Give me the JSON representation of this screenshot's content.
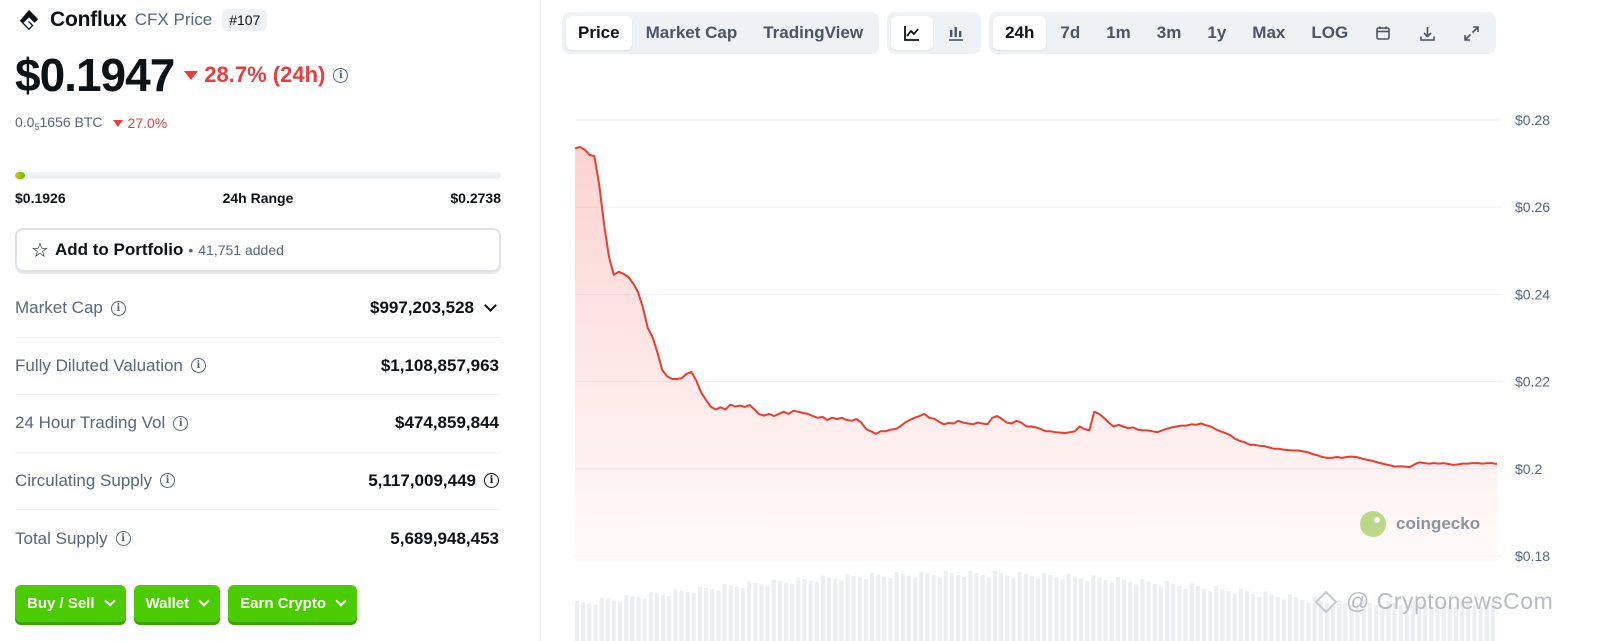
{
  "coin": {
    "name": "Conflux",
    "ticker_label": "CFX Price",
    "rank": "#107",
    "price": "$0.1947",
    "change_24h": "28.7% (24h)",
    "btc_price_prefix": "0.0",
    "btc_price_sub": "5",
    "btc_price_suffix": "1656 BTC",
    "btc_change": "27.0%",
    "range_low": "$0.1926",
    "range_label": "24h Range",
    "range_high": "$0.2738",
    "range_position_fraction": 0.01
  },
  "portfolio": {
    "label": "Add to Portfolio",
    "separator": "•",
    "count": "41,751 added"
  },
  "stats": [
    {
      "label": "Market Cap",
      "value": "$997,203,528"
    },
    {
      "label": "Fully Diluted Valuation",
      "value": "$1,108,857,963"
    },
    {
      "label": "24 Hour Trading Vol",
      "value": "$474,859,844"
    },
    {
      "label": "Circulating Supply",
      "value": "5,117,009,449"
    },
    {
      "label": "Total Supply",
      "value": "5,689,948,453"
    }
  ],
  "actions": [
    "Buy / Sell",
    "Wallet",
    "Earn Crypto"
  ],
  "toolbar": {
    "views": [
      "Price",
      "Market Cap",
      "TradingView"
    ],
    "chart_types": [
      "line-chart-icon",
      "candlestick-chart-icon"
    ],
    "ranges": [
      "24h",
      "7d",
      "1m",
      "3m",
      "1y",
      "Max",
      "LOG"
    ],
    "tools": [
      "calendar-icon",
      "download-icon",
      "expand-icon"
    ]
  },
  "watermark": "coingecko",
  "credit": "@ CryptonewsCom",
  "colors": {
    "accent_green": "#4bcc00",
    "down_red": "#e93d3d",
    "line_red": "#f03a2e",
    "muted": "#58667e"
  },
  "chart_data": {
    "type": "line",
    "title": "",
    "xlabel": "",
    "ylabel": "",
    "ylim": [
      0.18,
      0.28
    ],
    "y_ticks": [
      "$0.28",
      "$0.26",
      "$0.24",
      "$0.22",
      "$0.2",
      "$0.18"
    ],
    "series": [
      {
        "values": [
          0.2735,
          0.2738,
          0.2732,
          0.272,
          0.2717,
          0.265,
          0.256,
          0.2486,
          0.2445,
          0.2452,
          0.2447,
          0.244,
          0.2425,
          0.2405,
          0.237,
          0.2323,
          0.2302,
          0.2266,
          0.2226,
          0.2212,
          0.2206,
          0.2206,
          0.2208,
          0.2218,
          0.2222,
          0.2202,
          0.2175,
          0.2158,
          0.2142,
          0.2136,
          0.2141,
          0.2136,
          0.2147,
          0.2143,
          0.2145,
          0.2142,
          0.2146,
          0.2136,
          0.2125,
          0.2122,
          0.2126,
          0.2121,
          0.2126,
          0.2131,
          0.2126,
          0.2133,
          0.2131,
          0.2128,
          0.2126,
          0.2121,
          0.2117,
          0.2119,
          0.2112,
          0.2117,
          0.2114,
          0.2117,
          0.2112,
          0.211,
          0.2114,
          0.2106,
          0.2091,
          0.2086,
          0.208,
          0.2086,
          0.2086,
          0.209,
          0.2091,
          0.2097,
          0.2106,
          0.2112,
          0.2117,
          0.2121,
          0.2126,
          0.2117,
          0.2115,
          0.2108,
          0.2102,
          0.2105,
          0.2104,
          0.211,
          0.2106,
          0.2104,
          0.2102,
          0.2106,
          0.2104,
          0.2102,
          0.2117,
          0.2121,
          0.2114,
          0.2106,
          0.2104,
          0.211,
          0.2106,
          0.2097,
          0.2097,
          0.2095,
          0.2091,
          0.2086,
          0.2086,
          0.2084,
          0.2083,
          0.2082,
          0.2084,
          0.2086,
          0.2097,
          0.2091,
          0.2088,
          0.2131,
          0.2126,
          0.2117,
          0.2106,
          0.2097,
          0.2101,
          0.2097,
          0.2093,
          0.2095,
          0.209,
          0.2088,
          0.2088,
          0.2086,
          0.2084,
          0.2088,
          0.2092,
          0.2095,
          0.2097,
          0.2099,
          0.2099,
          0.2102,
          0.2101,
          0.2104,
          0.21,
          0.2097,
          0.2091,
          0.2086,
          0.2082,
          0.2077,
          0.2069,
          0.2064,
          0.2061,
          0.2055,
          0.2055,
          0.2053,
          0.2052,
          0.2049,
          0.2046,
          0.2046,
          0.2044,
          0.2043,
          0.2042,
          0.2042,
          0.204,
          0.2038,
          0.2034,
          0.2031,
          0.2027,
          0.2025,
          0.2025,
          0.2027,
          0.2025,
          0.2027,
          0.2028,
          0.2027,
          0.2024,
          0.2021,
          0.2019,
          0.2016,
          0.2013,
          0.201,
          0.2008,
          0.2005,
          0.2006,
          0.2005,
          0.2004,
          0.201,
          0.2015,
          0.2013,
          0.2012,
          0.2013,
          0.2012,
          0.2013,
          0.2011,
          0.2009,
          0.201,
          0.2012,
          0.2012,
          0.2013,
          0.2013,
          0.2012,
          0.2013,
          0.2013,
          0.2011
        ],
        "color": "#f03a2e"
      }
    ],
    "volume_bars": true,
    "grid": "horizontal",
    "legend": "none"
  }
}
